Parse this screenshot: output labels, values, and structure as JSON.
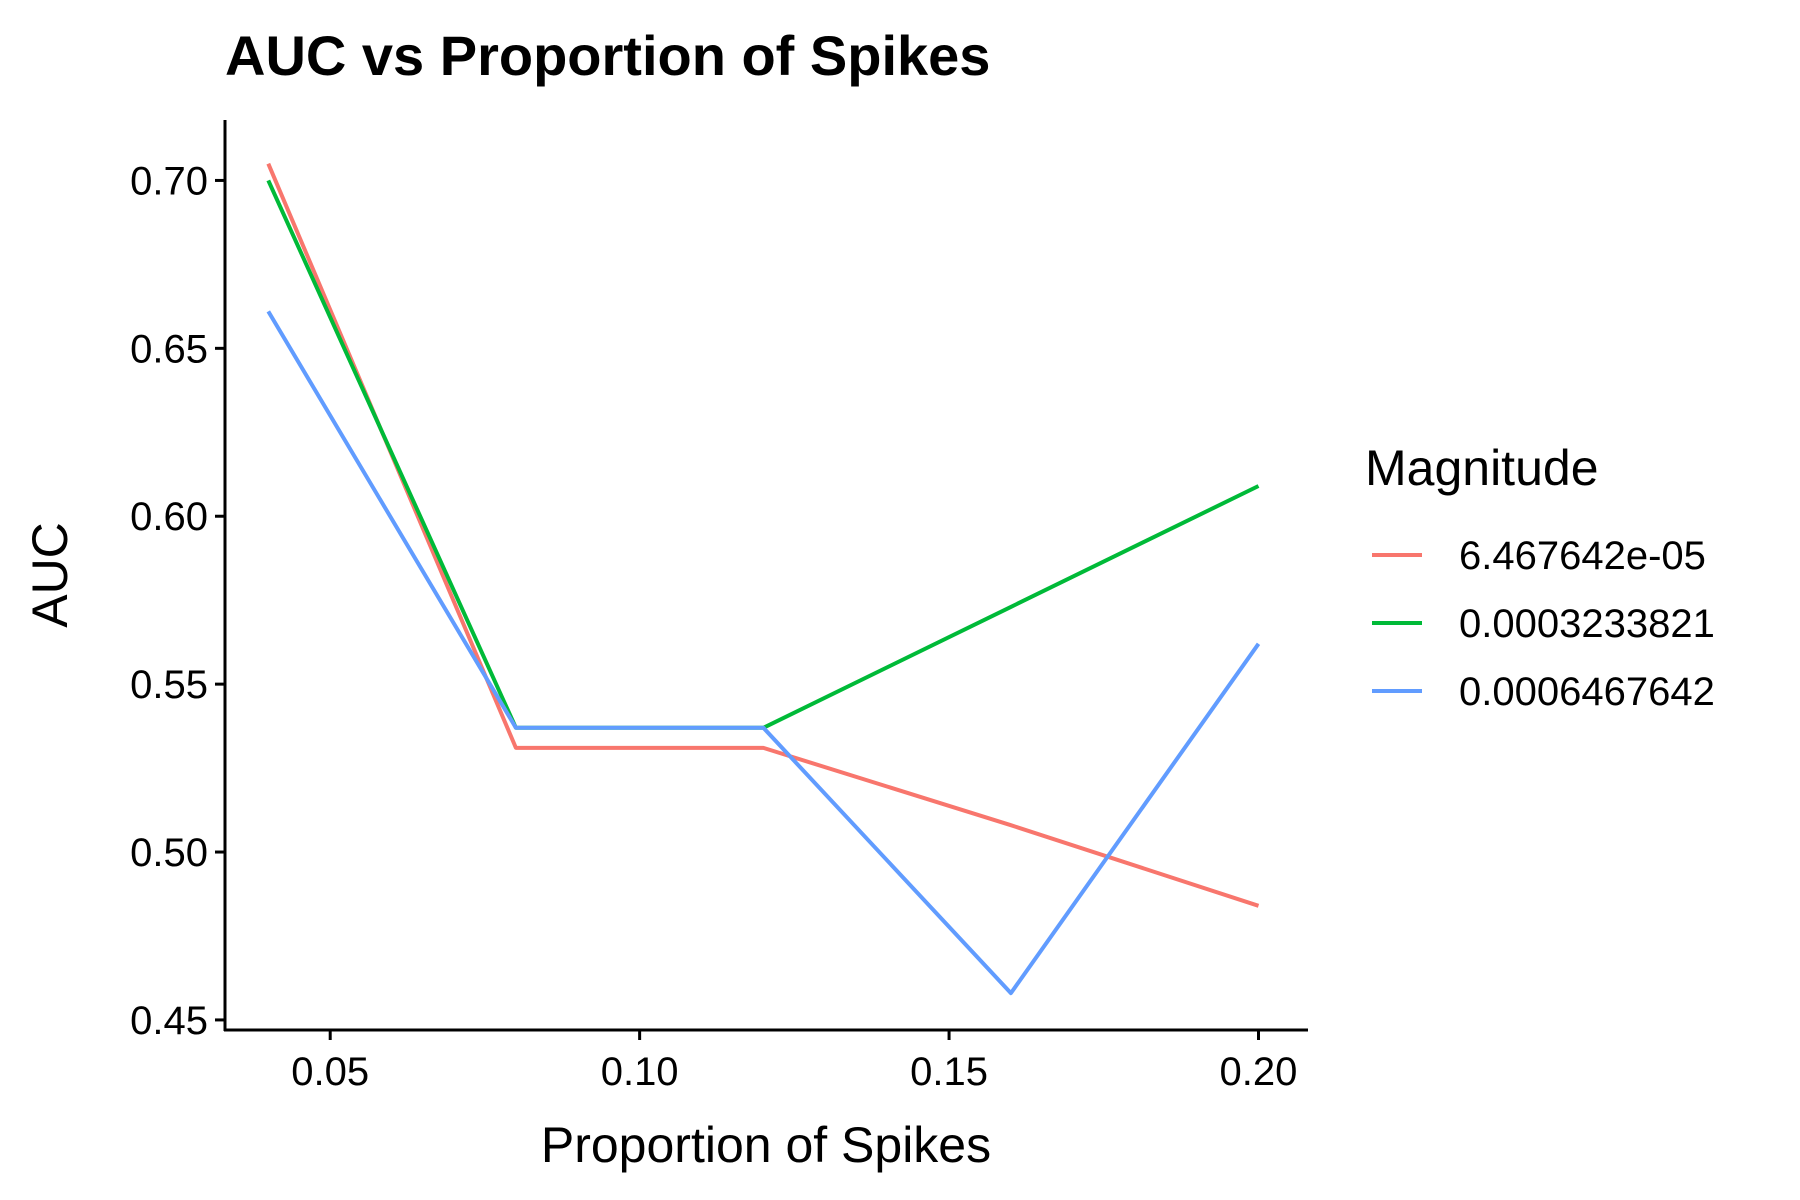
{
  "chart_data": {
    "type": "line",
    "title": "AUC vs Proportion of Spikes",
    "xlabel": "Proportion of Spikes",
    "ylabel": "AUC",
    "xlim": [
      0.033,
      0.208
    ],
    "ylim": [
      0.447,
      0.718
    ],
    "x_ticks": [
      0.05,
      0.1,
      0.15,
      0.2
    ],
    "x_tick_labels": [
      "0.05",
      "0.10",
      "0.15",
      "0.20"
    ],
    "y_ticks": [
      0.45,
      0.5,
      0.55,
      0.6,
      0.65,
      0.7
    ],
    "y_tick_labels": [
      "0.45",
      "0.50",
      "0.55",
      "0.60",
      "0.65",
      "0.70"
    ],
    "grid": false,
    "legend": {
      "title": "Magnitude",
      "placement": "right"
    },
    "x": [
      0.04,
      0.08,
      0.12,
      0.16,
      0.2
    ],
    "series": [
      {
        "name": "6.467642e-05",
        "color": "#F8766D",
        "values": [
          0.705,
          0.531,
          0.531,
          0.508,
          0.484
        ]
      },
      {
        "name": "0.0003233821",
        "color": "#00BA38",
        "values": [
          0.7,
          0.537,
          0.537,
          0.573,
          0.609
        ]
      },
      {
        "name": "0.0006467642",
        "color": "#619CFF",
        "values": [
          0.661,
          0.537,
          0.537,
          0.458,
          0.562
        ]
      }
    ]
  }
}
